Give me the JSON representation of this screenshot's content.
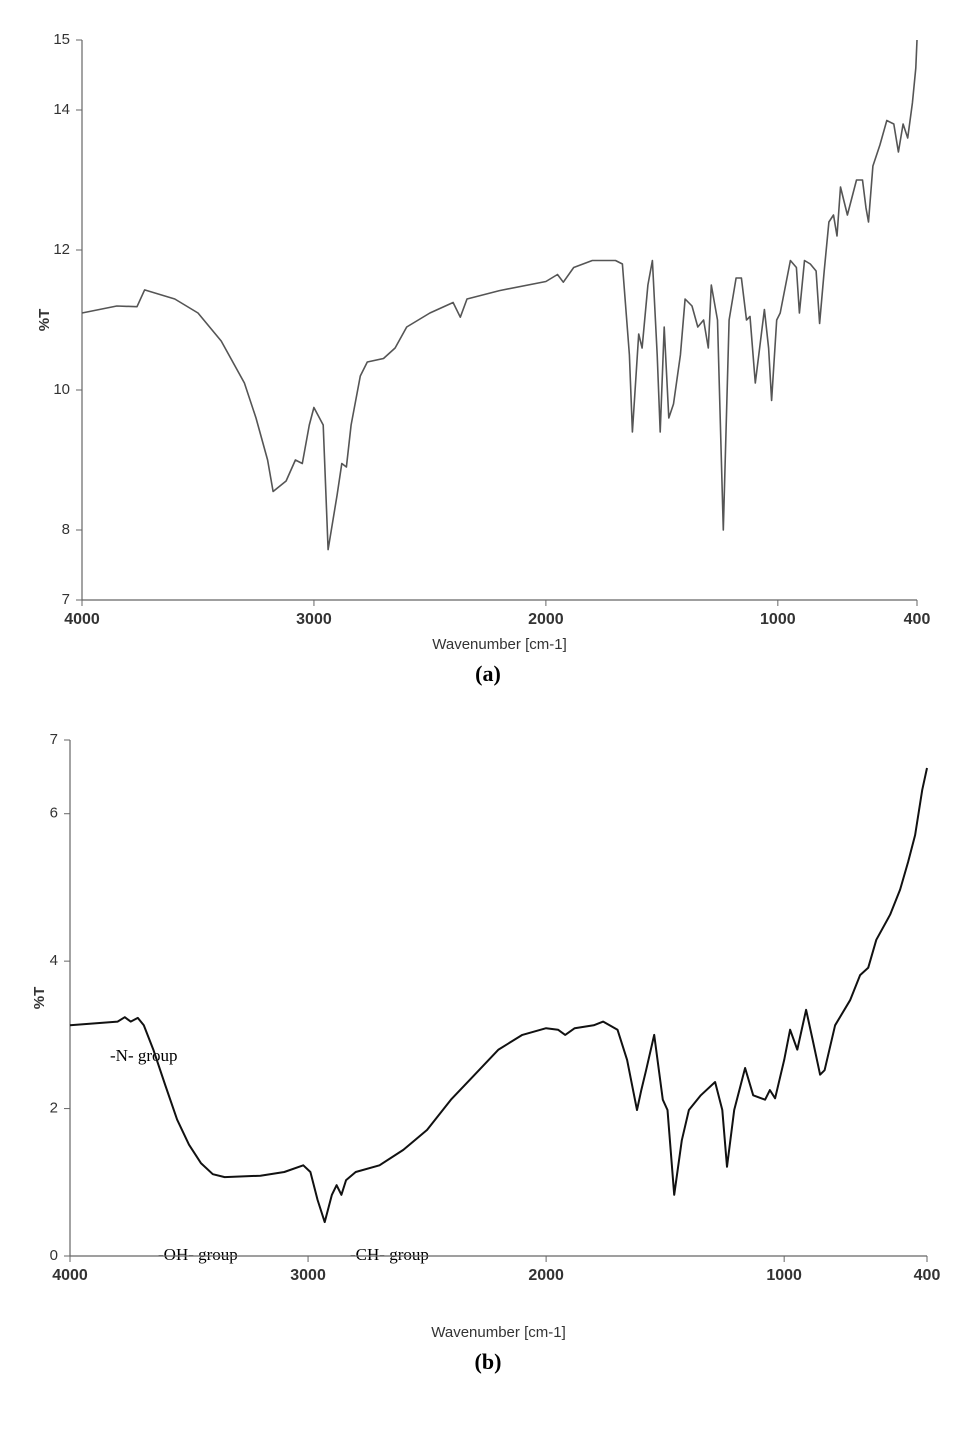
{
  "chart_data": [
    {
      "type": "line",
      "xlabel": "Wavenumber [cm-1]",
      "ylabel": "%T",
      "caption": "(a)",
      "xlim": [
        4000,
        400
      ],
      "ylim": [
        7,
        15
      ],
      "xticks": [
        4000,
        3000,
        2000,
        1000,
        400
      ],
      "yticks": [
        7,
        8,
        10,
        12,
        14,
        15
      ],
      "series": [
        {
          "name": "a",
          "color": "#555555",
          "x": [
            4000,
            3850,
            3763,
            3730,
            3650,
            3600,
            3500,
            3400,
            3300,
            3250,
            3200,
            3176,
            3120,
            3080,
            3050,
            3020,
            3000,
            2960,
            2939,
            2900,
            2880,
            2860,
            2840,
            2800,
            2770,
            2700,
            2650,
            2600,
            2500,
            2400,
            2369,
            2340,
            2200,
            2000,
            1950,
            1925,
            1880,
            1800,
            1700,
            1670,
            1640,
            1627,
            1600,
            1585,
            1560,
            1541,
            1520,
            1507,
            1490,
            1470,
            1450,
            1420,
            1400,
            1370,
            1345,
            1320,
            1300,
            1287,
            1260,
            1235,
            1210,
            1180,
            1157,
            1135,
            1120,
            1097,
            1058,
            1040,
            1027,
            1005,
            990,
            946,
            920,
            907,
            885,
            860,
            835,
            820,
            800,
            780,
            760,
            745,
            730,
            700,
            661,
            635,
            620,
            609,
            590,
            560,
            530,
            500,
            480,
            460,
            440,
            420,
            405,
            400
          ],
          "values": [
            11.1,
            11.2,
            11.19,
            11.43,
            11.35,
            11.3,
            11.1,
            10.7,
            10.1,
            9.6,
            9.0,
            8.55,
            8.7,
            9.0,
            8.95,
            9.5,
            9.75,
            9.5,
            7.72,
            8.5,
            8.95,
            8.9,
            9.5,
            10.2,
            10.4,
            10.45,
            10.6,
            10.9,
            11.1,
            11.25,
            11.04,
            11.3,
            11.42,
            11.55,
            11.65,
            11.54,
            11.75,
            11.85,
            11.85,
            11.8,
            10.5,
            9.4,
            10.8,
            10.6,
            11.5,
            11.85,
            10.5,
            9.4,
            10.9,
            9.6,
            9.8,
            10.5,
            11.3,
            11.2,
            10.9,
            11.0,
            10.6,
            11.5,
            11.0,
            8.0,
            11.0,
            11.6,
            11.6,
            11.0,
            11.05,
            10.1,
            11.15,
            10.6,
            9.85,
            11.0,
            11.1,
            11.85,
            11.75,
            11.1,
            11.85,
            11.8,
            11.7,
            10.95,
            11.7,
            12.4,
            12.5,
            12.2,
            12.9,
            12.5,
            13.0,
            13.0,
            12.6,
            12.4,
            13.2,
            13.5,
            13.85,
            13.8,
            13.4,
            13.8,
            13.6,
            14.1,
            14.6,
            15.0
          ]
        }
      ]
    },
    {
      "type": "line",
      "xlabel": "Wavenumber [cm-1]",
      "ylabel": "%T",
      "caption": "(b)",
      "xlim": [
        4000,
        400
      ],
      "ylim": [
        0,
        7
      ],
      "xticks": [
        4000,
        3000,
        2000,
        1000,
        400
      ],
      "yticks": [
        0,
        2,
        4,
        6,
        7
      ],
      "annotations": [
        "-N- group",
        "-OH- group",
        "-CH- group"
      ],
      "series": [
        {
          "name": "b",
          "color": "#111111",
          "x": [
            4000,
            3800,
            3770,
            3745,
            3715,
            3690,
            3650,
            3600,
            3550,
            3500,
            3450,
            3400,
            3350,
            3200,
            3100,
            3020,
            2990,
            2960,
            2930,
            2900,
            2880,
            2860,
            2840,
            2800,
            2700,
            2600,
            2500,
            2400,
            2300,
            2200,
            2100,
            2000,
            1950,
            1920,
            1880,
            1800,
            1760,
            1700,
            1660,
            1618,
            1600,
            1580,
            1546,
            1510,
            1490,
            1462,
            1430,
            1400,
            1350,
            1290,
            1260,
            1240,
            1210,
            1164,
            1130,
            1080,
            1060,
            1038,
            1000,
            975,
            945,
            908,
            880,
            849,
            830,
            786,
            723,
            681,
            647,
            613,
            555,
            513,
            479,
            450,
            420,
            400
          ],
          "values": [
            3.13,
            3.18,
            3.24,
            3.18,
            3.23,
            3.13,
            2.8,
            2.32,
            1.85,
            1.51,
            1.26,
            1.11,
            1.07,
            1.09,
            1.14,
            1.23,
            1.14,
            0.76,
            0.46,
            0.83,
            0.96,
            0.83,
            1.03,
            1.14,
            1.23,
            1.44,
            1.71,
            2.12,
            2.46,
            2.8,
            3.0,
            3.09,
            3.07,
            3.0,
            3.09,
            3.13,
            3.18,
            3.07,
            2.66,
            1.98,
            2.25,
            2.52,
            3.0,
            2.12,
            1.98,
            0.83,
            1.57,
            1.98,
            2.18,
            2.36,
            1.98,
            1.21,
            1.98,
            2.55,
            2.18,
            2.12,
            2.25,
            2.14,
            2.66,
            3.07,
            2.8,
            3.34,
            2.93,
            2.46,
            2.52,
            3.13,
            3.47,
            3.81,
            3.91,
            4.29,
            4.63,
            4.97,
            5.35,
            5.71,
            6.32,
            6.62
          ]
        }
      ]
    }
  ]
}
